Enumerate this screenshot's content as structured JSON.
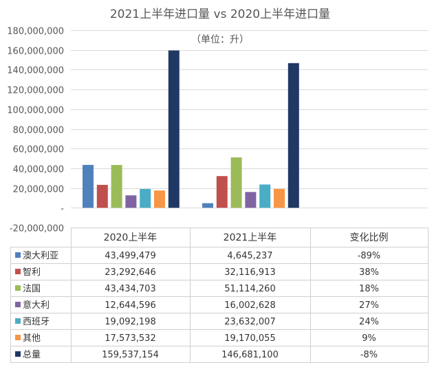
{
  "chart_data": {
    "type": "bar",
    "title": "2021上半年进口量 vs 2020上半年进口量",
    "subtitle": "（单位：升）",
    "categories": [
      "2020上半年",
      "2021上半年"
    ],
    "value_column_label": "变化比例",
    "ylim": [
      -20000000,
      180000000
    ],
    "yticks": [
      {
        "value": -20000000,
        "label": "-20,000,000"
      },
      {
        "value": 0,
        "label": "-"
      },
      {
        "value": 20000000,
        "label": "20,000,000"
      },
      {
        "value": 40000000,
        "label": "40,000,000"
      },
      {
        "value": 60000000,
        "label": "60,000,000"
      },
      {
        "value": 80000000,
        "label": "80,000,000"
      },
      {
        "value": 100000000,
        "label": "100,000,000"
      },
      {
        "value": 120000000,
        "label": "120,000,000"
      },
      {
        "value": 140000000,
        "label": "140,000,000"
      },
      {
        "value": 160000000,
        "label": "160,000,000"
      },
      {
        "value": 180000000,
        "label": "180,000,000"
      }
    ],
    "grid": true,
    "series": [
      {
        "name": "澳大利亚",
        "color": "#4f81bd",
        "values": [
          43499479,
          4645237
        ],
        "labels": [
          "43,499,479",
          "4,645,237"
        ],
        "change": "-89%"
      },
      {
        "name": "智利",
        "color": "#c0504d",
        "values": [
          23292646,
          32116913
        ],
        "labels": [
          "23,292,646",
          "32,116,913"
        ],
        "change": "38%"
      },
      {
        "name": "法国",
        "color": "#9bbb59",
        "values": [
          43434703,
          51114260
        ],
        "labels": [
          "43,434,703",
          "51,114,260"
        ],
        "change": "18%"
      },
      {
        "name": "意大利",
        "color": "#8064a2",
        "values": [
          12644596,
          16002628
        ],
        "labels": [
          "12,644,596",
          "16,002,628"
        ],
        "change": "27%"
      },
      {
        "name": "西班牙",
        "color": "#4bacc6",
        "values": [
          19092198,
          23632007
        ],
        "labels": [
          "19,092,198",
          "23,632,007"
        ],
        "change": "24%"
      },
      {
        "name": "其他",
        "color": "#f79646",
        "values": [
          17573532,
          19170055
        ],
        "labels": [
          "17,573,532",
          "19,170,055"
        ],
        "change": "9%"
      },
      {
        "name": "总量",
        "color": "#1f3864",
        "values": [
          159537154,
          146681100
        ],
        "labels": [
          "159,537,154",
          "146,681,100"
        ],
        "change": "-8%"
      }
    ]
  }
}
